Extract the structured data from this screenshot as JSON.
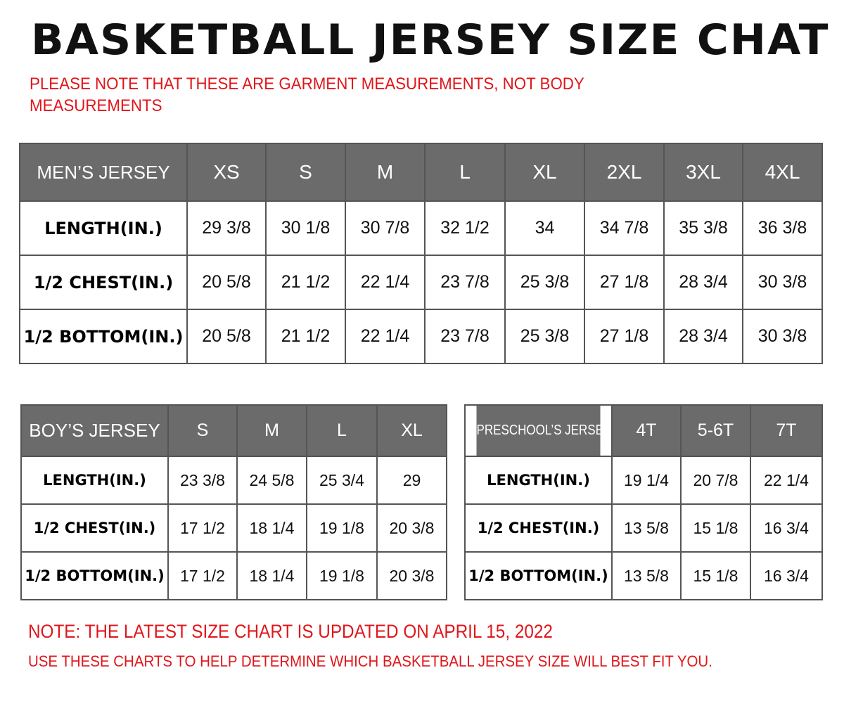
{
  "title": "BASKETBALL JERSEY SIZE CHAT",
  "garment_note": "PLEASE NOTE THAT THESE ARE GARMENT MEASUREMENTS, NOT BODY MEASUREMENTS",
  "update_note": "NOTE: THE LATEST SIZE CHART IS UPDATED ON APRIL 15, 2022",
  "usage_note": "USE THESE CHARTS TO HELP DETERMINE WHICH  BASKETBALL JERSEY  SIZE WILL BEST FIT YOU.",
  "colors": {
    "header_bg": "#6b6b6b",
    "note_red": "#e0161b"
  },
  "tables": {
    "men": {
      "header": [
        "MEN’S JERSEY",
        "XS",
        "S",
        "M",
        "L",
        "XL",
        "2XL",
        "3XL",
        "4XL"
      ],
      "rows": [
        [
          "LENGTH(IN.)",
          "29 3/8",
          "30 1/8",
          "30 7/8",
          "32 1/2",
          "34",
          "34 7/8",
          "35 3/8",
          "36 3/8"
        ],
        [
          "1/2 CHEST(IN.)",
          "20 5/8",
          "21 1/2",
          "22 1/4",
          "23 7/8",
          "25 3/8",
          "27 1/8",
          "28 3/4",
          "30 3/8"
        ],
        [
          "1/2 BOTTOM(IN.)",
          "20 5/8",
          "21 1/2",
          "22 1/4",
          "23 7/8",
          "25 3/8",
          "27 1/8",
          "28 3/4",
          "30 3/8"
        ]
      ]
    },
    "boy": {
      "header": [
        "BOY’S JERSEY",
        "S",
        "M",
        "L",
        "XL"
      ],
      "rows": [
        [
          "LENGTH(IN.)",
          "23 3/8",
          "24 5/8",
          "25 3/4",
          "29"
        ],
        [
          "1/2 CHEST(IN.)",
          "17 1/2",
          "18 1/4",
          "19 1/8",
          "20 3/8"
        ],
        [
          "1/2 BOTTOM(IN.)",
          "17 1/2",
          "18 1/4",
          "19 1/8",
          "20 3/8"
        ]
      ]
    },
    "pre": {
      "header": [
        "PRESCHOOL’S JERSEY",
        "4T",
        "5-6T",
        "7T"
      ],
      "rows": [
        [
          "LENGTH(IN.)",
          "19 1/4",
          "20 7/8",
          "22 1/4"
        ],
        [
          "1/2 CHEST(IN.)",
          "13 5/8",
          "15 1/8",
          "16 3/4"
        ],
        [
          "1/2 BOTTOM(IN.)",
          "13 5/8",
          "15 1/8",
          "16 3/4"
        ]
      ]
    }
  }
}
